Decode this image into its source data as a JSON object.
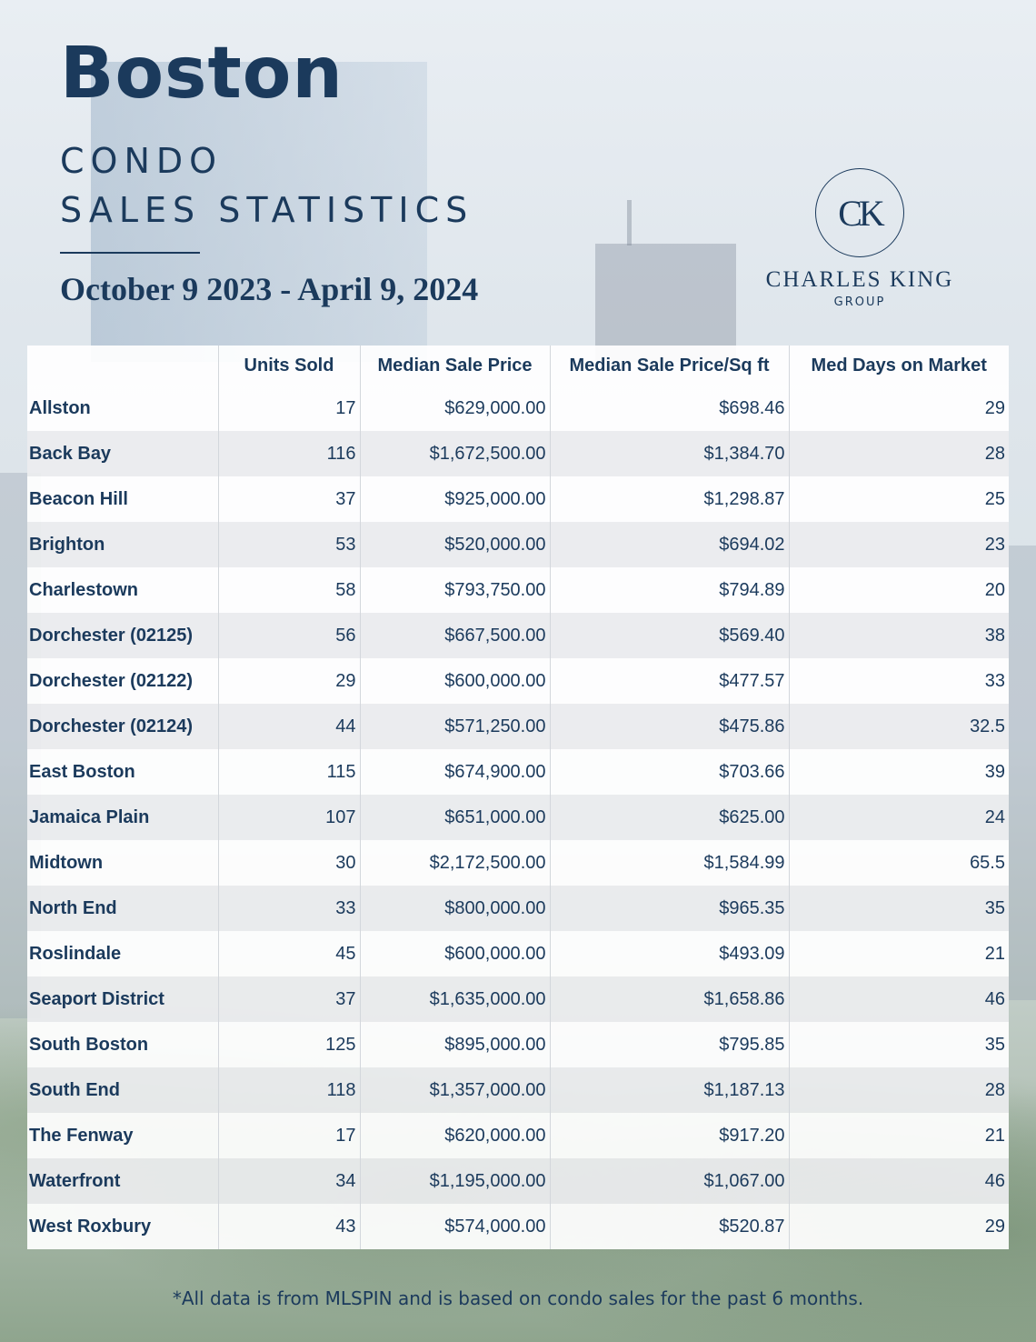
{
  "header": {
    "title": "Boston",
    "subtitle_line1": "CONDO",
    "subtitle_line2": "SALES STATISTICS",
    "date_range": "October 9 2023 - April 9, 2024"
  },
  "logo": {
    "monogram": "CK",
    "name": "CHARLES KING",
    "group": "GROUP"
  },
  "table": {
    "columns": [
      "",
      "Units Sold",
      "Median Sale Price",
      "Median Sale Price/Sq ft",
      "Med Days on Market"
    ],
    "rows": [
      {
        "name": "Allston",
        "units": "17",
        "median_price": "$629,000.00",
        "price_sqft": "$698.46",
        "days": "29"
      },
      {
        "name": "Back Bay",
        "units": "116",
        "median_price": "$1,672,500.00",
        "price_sqft": "$1,384.70",
        "days": "28"
      },
      {
        "name": "Beacon Hill",
        "units": "37",
        "median_price": "$925,000.00",
        "price_sqft": "$1,298.87",
        "days": "25"
      },
      {
        "name": "Brighton",
        "units": "53",
        "median_price": "$520,000.00",
        "price_sqft": "$694.02",
        "days": "23"
      },
      {
        "name": "Charlestown",
        "units": "58",
        "median_price": "$793,750.00",
        "price_sqft": "$794.89",
        "days": "20"
      },
      {
        "name": "Dorchester (02125)",
        "units": "56",
        "median_price": "$667,500.00",
        "price_sqft": "$569.40",
        "days": "38"
      },
      {
        "name": "Dorchester (02122)",
        "units": "29",
        "median_price": "$600,000.00",
        "price_sqft": "$477.57",
        "days": "33"
      },
      {
        "name": "Dorchester (02124)",
        "units": "44",
        "median_price": "$571,250.00",
        "price_sqft": "$475.86",
        "days": "32.5"
      },
      {
        "name": "East Boston",
        "units": "115",
        "median_price": "$674,900.00",
        "price_sqft": "$703.66",
        "days": "39"
      },
      {
        "name": "Jamaica Plain",
        "units": "107",
        "median_price": "$651,000.00",
        "price_sqft": "$625.00",
        "days": "24"
      },
      {
        "name": "Midtown",
        "units": "30",
        "median_price": "$2,172,500.00",
        "price_sqft": "$1,584.99",
        "days": "65.5"
      },
      {
        "name": "North End",
        "units": "33",
        "median_price": "$800,000.00",
        "price_sqft": "$965.35",
        "days": "35"
      },
      {
        "name": "Roslindale",
        "units": "45",
        "median_price": "$600,000.00",
        "price_sqft": "$493.09",
        "days": "21"
      },
      {
        "name": "Seaport District",
        "units": "37",
        "median_price": "$1,635,000.00",
        "price_sqft": "$1,658.86",
        "days": "46"
      },
      {
        "name": "South Boston",
        "units": "125",
        "median_price": "$895,000.00",
        "price_sqft": "$795.85",
        "days": "35"
      },
      {
        "name": "South End",
        "units": "118",
        "median_price": "$1,357,000.00",
        "price_sqft": "$1,187.13",
        "days": "28"
      },
      {
        "name": "The Fenway",
        "units": "17",
        "median_price": "$620,000.00",
        "price_sqft": "$917.20",
        "days": "21"
      },
      {
        "name": "Waterfront",
        "units": "34",
        "median_price": "$1,195,000.00",
        "price_sqft": "$1,067.00",
        "days": "46"
      },
      {
        "name": "West Roxbury",
        "units": "43",
        "median_price": "$574,000.00",
        "price_sqft": "$520.87",
        "days": "29"
      }
    ]
  },
  "footnote": "*All data is from MLSPIN and is based on condo sales for the past 6 months."
}
